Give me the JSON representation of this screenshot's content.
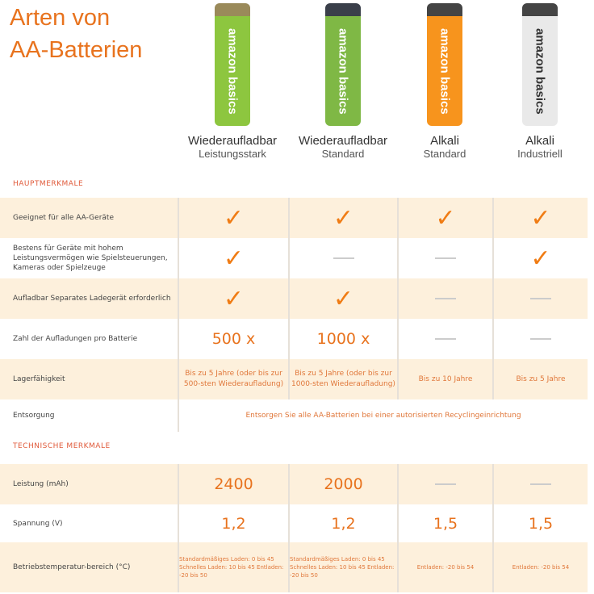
{
  "title": [
    "Arten von",
    "AA-Batterien"
  ],
  "products": [
    {
      "name": "Wiederaufladbar",
      "sub": "Leistungsstark",
      "brand": "amazon basics",
      "color": "#8dc63f",
      "cap": "#9a8a5a"
    },
    {
      "name": "Wiederaufladbar",
      "sub": "Standard",
      "brand": "amazon basics",
      "color": "#7fb845",
      "cap": "#3a3f4a"
    },
    {
      "name": "Alkali",
      "sub": "Standard",
      "brand": "amazon basics",
      "color": "#f7941d",
      "cap": "#444"
    },
    {
      "name": "Alkali",
      "sub": "Industriell",
      "brand": "amazon basics",
      "color": "#e9e9e9",
      "cap": "#444"
    }
  ],
  "sections": {
    "main": "HAUPTMERKMALE",
    "tech": "TECHNISCHE MERKMALE"
  },
  "rows": {
    "geeignet": {
      "label": "Geeignet für alle AA-Geräte",
      "values": [
        "check",
        "check",
        "check",
        "check"
      ]
    },
    "bestens": {
      "label": "Bestens für Geräte mit hohem Leistungsvermögen wie Spielsteuerungen, Kameras oder Spielzeuge",
      "values": [
        "check",
        "-",
        "-",
        "check"
      ]
    },
    "aufladbar": {
      "label": "Aufladbar Separates Ladegerät erforderlich",
      "values": [
        "check",
        "check",
        "-",
        "-"
      ]
    },
    "zahl": {
      "label": "Zahl der Aufladungen pro Batterie",
      "values": [
        "500 x",
        "1000 x",
        "-",
        "-"
      ]
    },
    "lager": {
      "label": "Lagerfähigkeit",
      "values": [
        "Bis zu 5 Jahre (oder bis zur 500-sten Wiederaufladung)",
        "Bis zu 5 Jahre (oder bis zur 1000-sten Wiederaufladung)",
        "Bis zu 10 Jahre",
        "Bis zu 5 Jahre"
      ]
    },
    "entsorgung": {
      "label": "Entsorgung",
      "value": "Entsorgen Sie alle AA-Batterien bei einer autorisierten Recyclingeinrichtung"
    },
    "leistung": {
      "label": "Leistung (mAh)",
      "values": [
        "2400",
        "2000",
        "-",
        "-"
      ]
    },
    "spannung": {
      "label": "Spannung (V)",
      "values": [
        "1,2",
        "1,2",
        "1,5",
        "1,5"
      ]
    },
    "temp": {
      "label": "Betriebstemperatur-bereich (°C)",
      "values": [
        "Standardmäßiges Laden: 0 bis 45 Schnelles Laden: 10 bis 45 Entladen: -20 bis 50",
        "Standardmäßiges Laden: 0 bis 45 Schnelles Laden: 10 bis 45 Entladen: -20 bis 50",
        "Entladen: -20 bis 54",
        "Entladen: -20 bis 54"
      ]
    }
  }
}
